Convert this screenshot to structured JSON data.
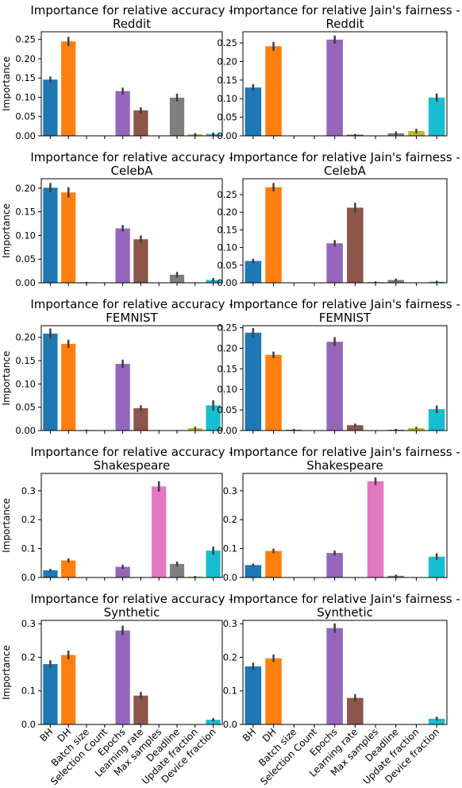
{
  "figure": {
    "ylabel": "Importance",
    "categories": [
      "BH",
      "DH",
      "Batch size",
      "Selection Count",
      "Epochs",
      "Learning rate",
      "Max samples",
      "Deadline",
      "Update fraction",
      "Device fraction"
    ],
    "colors": [
      "#1f77b4",
      "#ff7f0e",
      "#2ca02c",
      "#d62728",
      "#9467bd",
      "#8c564b",
      "#e377c2",
      "#7f7f7f",
      "#bcbd22",
      "#17becf"
    ]
  },
  "chart_data": [
    {
      "type": "bar",
      "title": "Importance for relative accuracy - Reddit",
      "ylabel": "Importance",
      "ylim": [
        0,
        0.27
      ],
      "ticks": [
        0.0,
        0.05,
        0.1,
        0.15,
        0.2,
        0.25
      ],
      "tick_labels": [
        "0.00",
        "0.05",
        "0.10",
        "0.15",
        "0.20",
        "0.25"
      ],
      "values": [
        0.146,
        0.245,
        0.0,
        0.0,
        0.116,
        0.066,
        0.0,
        0.099,
        0.004,
        0.005
      ],
      "errors": [
        0.008,
        0.012,
        0.001,
        0.001,
        0.009,
        0.008,
        0.001,
        0.01,
        0.003,
        0.004
      ]
    },
    {
      "type": "bar",
      "title": "Importance for relative Jain's fairness - Reddit",
      "ylabel": "",
      "ylim": [
        0,
        0.28
      ],
      "ticks": [
        0.0,
        0.05,
        0.1,
        0.15,
        0.2,
        0.25
      ],
      "tick_labels": [
        "0.00",
        "0.05",
        "0.10",
        "0.15",
        "0.20",
        "0.25"
      ],
      "values": [
        0.13,
        0.241,
        0.0,
        0.0,
        0.259,
        0.003,
        0.0,
        0.007,
        0.013,
        0.103
      ],
      "errors": [
        0.009,
        0.012,
        0.001,
        0.001,
        0.011,
        0.002,
        0.001,
        0.005,
        0.006,
        0.011
      ]
    },
    {
      "type": "bar",
      "title": "Importance for relative accuracy - CelebA",
      "ylabel": "Importance",
      "ylim": [
        0,
        0.22
      ],
      "ticks": [
        0.0,
        0.05,
        0.1,
        0.15,
        0.2
      ],
      "tick_labels": [
        "0.00",
        "0.05",
        "0.10",
        "0.15",
        "0.20"
      ],
      "values": [
        0.201,
        0.191,
        0.001,
        0.0,
        0.115,
        0.092,
        0.0,
        0.017,
        0.0,
        0.006
      ],
      "errors": [
        0.01,
        0.011,
        0.001,
        0.001,
        0.007,
        0.008,
        0.001,
        0.006,
        0.001,
        0.004
      ]
    },
    {
      "type": "bar",
      "title": "Importance for relative Jain's fairness - CelebA",
      "ylabel": "",
      "ylim": [
        0,
        0.295
      ],
      "ticks": [
        0.0,
        0.05,
        0.1,
        0.15,
        0.2,
        0.25
      ],
      "tick_labels": [
        "0.00",
        "0.05",
        "0.10",
        "0.15",
        "0.20",
        "0.25"
      ],
      "values": [
        0.062,
        0.271,
        0.0,
        0.0,
        0.112,
        0.213,
        0.002,
        0.008,
        0.0,
        0.003
      ],
      "errors": [
        0.006,
        0.012,
        0.001,
        0.001,
        0.009,
        0.014,
        0.002,
        0.004,
        0.001,
        0.003
      ]
    },
    {
      "type": "bar",
      "title": "Importance for relative accuracy - FEMNIST",
      "ylabel": "Importance",
      "ylim": [
        0,
        0.225
      ],
      "ticks": [
        0.0,
        0.05,
        0.1,
        0.15,
        0.2
      ],
      "tick_labels": [
        "0.00",
        "0.05",
        "0.10",
        "0.15",
        "0.20"
      ],
      "values": [
        0.208,
        0.186,
        0.001,
        0.0,
        0.143,
        0.048,
        0.0,
        0.0,
        0.005,
        0.054
      ],
      "errors": [
        0.011,
        0.009,
        0.001,
        0.001,
        0.009,
        0.006,
        0.001,
        0.001,
        0.003,
        0.011
      ]
    },
    {
      "type": "bar",
      "title": "Importance for relative Jain's fairness - FEMNIST",
      "ylabel": "",
      "ylim": [
        0,
        0.255
      ],
      "ticks": [
        0.0,
        0.05,
        0.1,
        0.15,
        0.2,
        0.25
      ],
      "tick_labels": [
        "0.00",
        "0.05",
        "0.10",
        "0.15",
        "0.20",
        "0.25"
      ],
      "values": [
        0.238,
        0.184,
        0.002,
        0.0,
        0.216,
        0.013,
        0.0,
        0.002,
        0.006,
        0.052
      ],
      "errors": [
        0.011,
        0.008,
        0.002,
        0.001,
        0.011,
        0.004,
        0.001,
        0.002,
        0.003,
        0.009
      ]
    },
    {
      "type": "bar",
      "title": "Importance for relative accuracy - Shakespeare",
      "ylabel": "Importance",
      "ylim": [
        0,
        0.36
      ],
      "ticks": [
        0.0,
        0.1,
        0.2,
        0.3
      ],
      "tick_labels": [
        "0.0",
        "0.1",
        "0.2",
        "0.3"
      ],
      "values": [
        0.025,
        0.059,
        0.0,
        0.0,
        0.037,
        0.001,
        0.315,
        0.047,
        0.003,
        0.093
      ],
      "errors": [
        0.005,
        0.007,
        0.001,
        0.001,
        0.007,
        0.001,
        0.018,
        0.008,
        0.002,
        0.014
      ]
    },
    {
      "type": "bar",
      "title": "Importance for relative Jain's fairness - Shakespeare",
      "ylabel": "",
      "ylim": [
        0,
        0.36
      ],
      "ticks": [
        0.0,
        0.1,
        0.2,
        0.3
      ],
      "tick_labels": [
        "0.0",
        "0.1",
        "0.2",
        "0.3"
      ],
      "values": [
        0.043,
        0.092,
        0.0,
        0.0,
        0.085,
        0.0,
        0.333,
        0.006,
        0.0,
        0.072
      ],
      "errors": [
        0.005,
        0.008,
        0.001,
        0.001,
        0.008,
        0.001,
        0.013,
        0.004,
        0.001,
        0.012
      ]
    },
    {
      "type": "bar",
      "title": "Importance for relative accuracy - Synthetic",
      "ylabel": "Importance",
      "ylim": [
        0,
        0.31
      ],
      "ticks": [
        0.0,
        0.1,
        0.2,
        0.3
      ],
      "tick_labels": [
        "0.0",
        "0.1",
        "0.2",
        "0.3"
      ],
      "values": [
        0.18,
        0.207,
        0.0,
        0.0,
        0.28,
        0.086,
        0.0,
        0.0,
        0.0,
        0.014
      ],
      "errors": [
        0.011,
        0.013,
        0.001,
        0.001,
        0.014,
        0.011,
        0.001,
        0.001,
        0.001,
        0.005
      ]
    },
    {
      "type": "bar",
      "title": "Importance for relative Jain's fairness - Synthetic",
      "ylabel": "",
      "ylim": [
        0,
        0.31
      ],
      "ticks": [
        0.0,
        0.1,
        0.2,
        0.3
      ],
      "tick_labels": [
        "0.0",
        "0.1",
        "0.2",
        "0.3"
      ],
      "values": [
        0.173,
        0.197,
        0.0,
        0.0,
        0.287,
        0.079,
        0.0,
        0.0,
        0.0,
        0.017
      ],
      "errors": [
        0.011,
        0.011,
        0.001,
        0.001,
        0.014,
        0.011,
        0.001,
        0.001,
        0.001,
        0.006
      ]
    }
  ]
}
